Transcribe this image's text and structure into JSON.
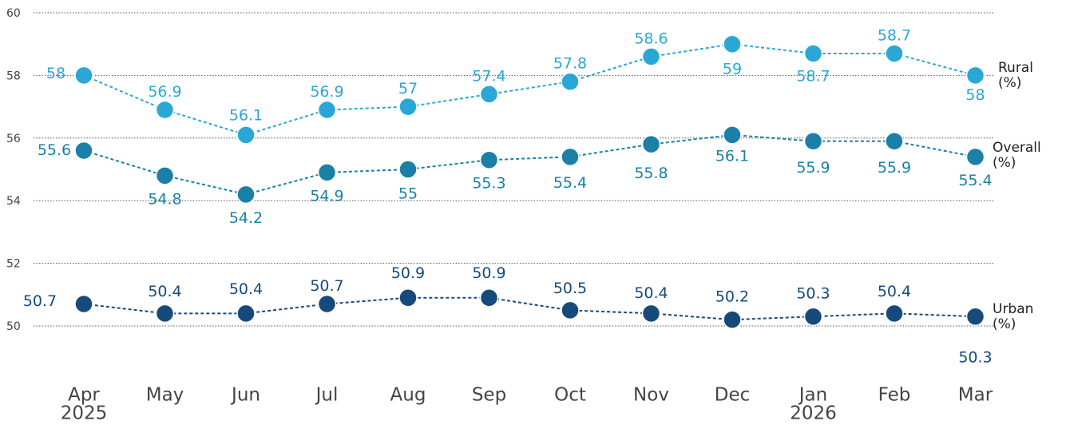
{
  "chart_data": {
    "type": "line",
    "categories": [
      "Apr",
      "May",
      "Jun",
      "Jul",
      "Aug",
      "Sep",
      "Oct",
      "Nov",
      "Dec",
      "Jan",
      "Feb",
      "Mar"
    ],
    "category_years": [
      "2025",
      null,
      null,
      null,
      null,
      null,
      null,
      null,
      null,
      "2026",
      null,
      null
    ],
    "series": [
      {
        "name": "Rural (%)",
        "color": "#2aa7d6",
        "values": [
          58,
          56.9,
          56.1,
          56.9,
          57,
          57.4,
          57.8,
          58.6,
          59,
          58.7,
          58.7,
          58
        ]
      },
      {
        "name": "Overall (%)",
        "color": "#1a80a8",
        "values": [
          55.6,
          54.8,
          54.2,
          54.9,
          55,
          55.3,
          55.4,
          55.8,
          56.1,
          55.9,
          55.9,
          55.4
        ]
      },
      {
        "name": "Urban (%)",
        "color": "#174a7c",
        "values": [
          50.7,
          50.4,
          50.4,
          50.7,
          50.9,
          50.9,
          50.5,
          50.4,
          50.2,
          50.3,
          50.4,
          50.3
        ]
      }
    ],
    "ylim": [
      50,
      60
    ],
    "yticks": [
      50,
      52,
      54,
      56,
      58,
      60
    ],
    "grid": true
  }
}
